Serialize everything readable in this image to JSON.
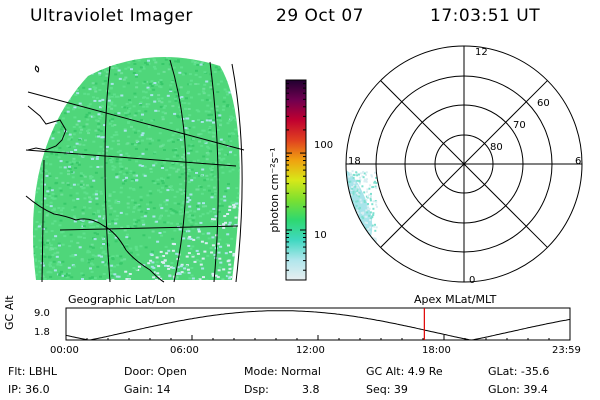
{
  "header": {
    "instrument": "Ultraviolet Imager",
    "date": "29 Oct 07",
    "time": "17:03:51 UT"
  },
  "colors": {
    "background": "#ffffff",
    "foreground": "#000000",
    "marker": "#e00000",
    "imager_fill_primary": "#4fd67a",
    "imager_fill_secondary": "#5ee08c",
    "imager_fill_dim": "#a8e4ea",
    "imager_fill_light": "#d8eef2"
  },
  "colorbar": {
    "unit_label": "photon cm⁻²s⁻¹",
    "scale": "log",
    "tick_values": [
      10,
      100
    ],
    "tick_labels": [
      "10",
      "100"
    ],
    "gradient": [
      "#e8eef0",
      "#b0e6ec",
      "#3fd8c0",
      "#2ed870",
      "#7ce030",
      "#d8e818",
      "#f0a010",
      "#e04020",
      "#c00030",
      "#700050",
      "#200030"
    ]
  },
  "polar_plot": {
    "clock_labels": [
      "12",
      "6",
      "18",
      "0"
    ],
    "latitude_labels": [
      "60",
      "70",
      "80"
    ]
  },
  "panel_titles": {
    "left": "Geographic Lat/Lon",
    "right": "Apex MLat/MLT"
  },
  "altitude_plot": {
    "y_label": "GC Alt",
    "y_ticks": [
      "9.0",
      "1.8"
    ],
    "x_ticks": [
      "00:00",
      "06:00",
      "12:00",
      "18:00",
      "23:59"
    ],
    "marker_time": "17:03:51",
    "marker_hours": 17.064,
    "orbit_period_hours": 18.2,
    "perigee_hours": 19.3,
    "alt_min": 1.8,
    "alt_max": 9.0
  },
  "info": {
    "flt": "Flt: LBHL",
    "ip": "IP: 36.0",
    "door": "Door: Open",
    "gain": "Gain: 14",
    "mode": "Mode: Normal",
    "dsp_label": "Dsp:",
    "dsp_value": "3.8",
    "gc_alt": "GC Alt: 4.9 Re",
    "seq": "Seq: 39",
    "glat": "GLat: -35.6",
    "glon": "GLon: 39.4"
  }
}
